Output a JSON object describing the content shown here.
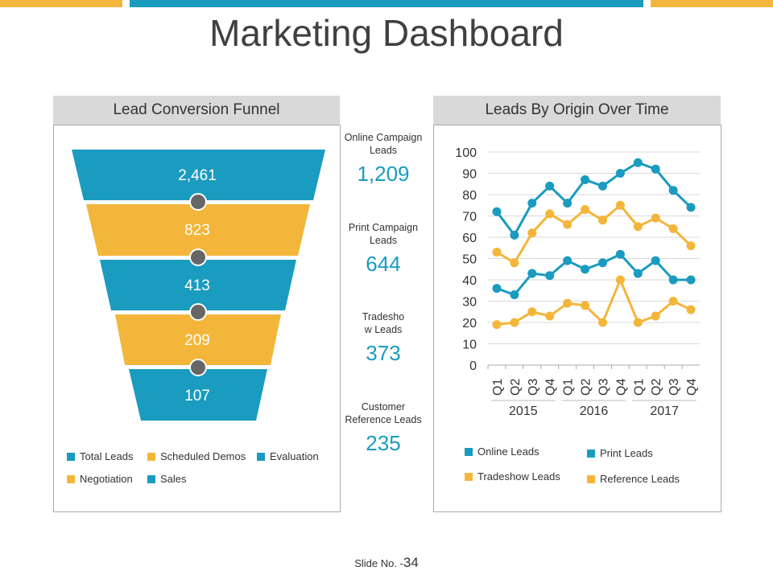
{
  "title": "Marketing Dashboard",
  "colors": {
    "blue": "#1a9bc0",
    "yellow": "#f4b63a"
  },
  "funnel": {
    "title": "Lead Conversion Funnel",
    "values": [
      "2,461",
      "823",
      "413",
      "209",
      "107"
    ],
    "legend": [
      "Total Leads",
      "Scheduled Demos",
      "Evaluation",
      "Negotiation",
      "Sales"
    ]
  },
  "kpis": [
    {
      "label": "Online Campaign Leads",
      "value": "1,209"
    },
    {
      "label": "Print Campaign Leads",
      "value": "644"
    },
    {
      "label": "Tradesho w Leads",
      "value": "373"
    },
    {
      "label": "Customer Reference Leads",
      "value": "235"
    }
  ],
  "chart_data": {
    "type": "line",
    "title": "Leads By Origin Over Time",
    "categories": [
      "Q1",
      "Q2",
      "Q3",
      "Q4",
      "Q1",
      "Q2",
      "Q3",
      "Q4",
      "Q1",
      "Q2",
      "Q3",
      "Q4"
    ],
    "groups": [
      "2015",
      "2016",
      "2017"
    ],
    "ylim": [
      0,
      100
    ],
    "yticks": [
      "0",
      "10",
      "20",
      "30",
      "40",
      "50",
      "60",
      "70",
      "80",
      "90",
      "100"
    ],
    "grid": true,
    "series": [
      {
        "name": "Online Leads",
        "color": "#1a9bc0",
        "values": [
          72,
          61,
          76,
          84,
          76,
          87,
          84,
          90,
          95,
          92,
          82,
          74
        ]
      },
      {
        "name": "Tradeshow Leads",
        "color": "#f4b63a",
        "values": [
          53,
          48,
          62,
          71,
          66,
          73,
          68,
          75,
          65,
          69,
          64,
          56
        ]
      },
      {
        "name": "Print Leads",
        "color": "#1a9bc0",
        "values": [
          36,
          33,
          43,
          42,
          49,
          45,
          48,
          52,
          43,
          49,
          40,
          40
        ]
      },
      {
        "name": "Reference Leads",
        "color": "#f4b63a",
        "values": [
          19,
          20,
          25,
          23,
          29,
          28,
          20,
          40,
          20,
          23,
          30,
          26
        ]
      }
    ]
  },
  "footer": {
    "label": "Slide No. -",
    "number": "34"
  }
}
